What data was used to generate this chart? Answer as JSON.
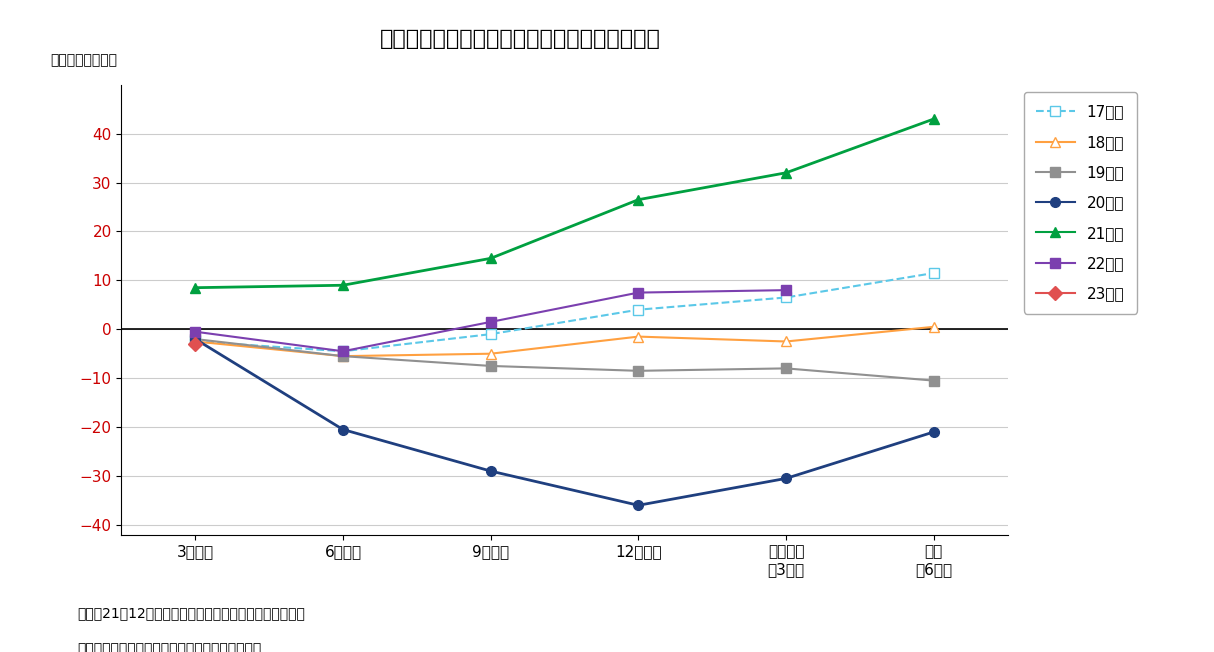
{
  "title": "（図表８）　経常利益計画（全規模・全産業）",
  "ylabel": "（対前年比、％）",
  "x_labels": [
    "3月調査",
    "6月調査",
    "9月調査",
    "12月調査",
    "実績見込\n（3月）",
    "実績\n（6月）"
  ],
  "ylim": [
    -42,
    50
  ],
  "yticks": [
    -40,
    -30,
    -20,
    -10,
    0,
    10,
    20,
    30,
    40
  ],
  "note_line1": "（注）21年12月調査以降は調査対象見直し後の新ベース",
  "note_line2": "（資料）日本銀行「全国企業短期経済観測調査」",
  "series": [
    {
      "label": "17年度",
      "color": "#5BC8E8",
      "linestyle": "dashed",
      "marker": "s",
      "markerfacecolor": "white",
      "markeredgecolor": "#5BC8E8",
      "markersize": 7,
      "linewidth": 1.5,
      "values": [
        -2.5,
        -4.5,
        -1.0,
        4.0,
        6.5,
        11.5
      ]
    },
    {
      "label": "18年度",
      "color": "#FFA040",
      "linestyle": "solid",
      "marker": "^",
      "markerfacecolor": "white",
      "markeredgecolor": "#FFA040",
      "markersize": 7,
      "linewidth": 1.5,
      "values": [
        -2.5,
        -5.5,
        -5.0,
        -1.5,
        -2.5,
        0.5
      ]
    },
    {
      "label": "19年度",
      "color": "#909090",
      "linestyle": "solid",
      "marker": "s",
      "markerfacecolor": "#909090",
      "markeredgecolor": "#909090",
      "markersize": 7,
      "linewidth": 1.5,
      "values": [
        -2.0,
        -5.5,
        -7.5,
        -8.5,
        -8.0,
        -10.5
      ]
    },
    {
      "label": "20年度",
      "color": "#1F3F7F",
      "linestyle": "solid",
      "marker": "o",
      "markerfacecolor": "#1F3F7F",
      "markeredgecolor": "#1F3F7F",
      "markersize": 7,
      "linewidth": 2.0,
      "values": [
        -2.0,
        -20.5,
        -29.0,
        -36.0,
        -30.5,
        -21.0
      ]
    },
    {
      "label": "21年度",
      "color": "#00A040",
      "linestyle": "solid",
      "marker": "^",
      "markerfacecolor": "#00A040",
      "markeredgecolor": "#00A040",
      "markersize": 7,
      "linewidth": 2.0,
      "values": [
        8.5,
        9.0,
        14.5,
        26.5,
        32.0,
        43.0
      ]
    },
    {
      "label": "22年度",
      "color": "#7B3FAF",
      "linestyle": "solid",
      "marker": "s",
      "markerfacecolor": "#7B3FAF",
      "markeredgecolor": "#7B3FAF",
      "markersize": 7,
      "linewidth": 1.5,
      "values": [
        -0.5,
        -4.5,
        1.5,
        7.5,
        8.0,
        null
      ]
    },
    {
      "label": "23年度",
      "color": "#E05050",
      "linestyle": "solid",
      "marker": "D",
      "markerfacecolor": "#E05050",
      "markeredgecolor": "#E05050",
      "markersize": 7,
      "linewidth": 1.5,
      "values": [
        -3.0,
        null,
        null,
        null,
        null,
        null
      ]
    }
  ],
  "background_color": "#FFFFFF",
  "plot_bg_color": "#FFFFFF",
  "ytick_color": "#CC0000",
  "grid_color": "#CCCCCC",
  "legend_fontsize": 11,
  "title_fontsize": 16,
  "note_fontsize": 10,
  "ylabel_fontsize": 10
}
